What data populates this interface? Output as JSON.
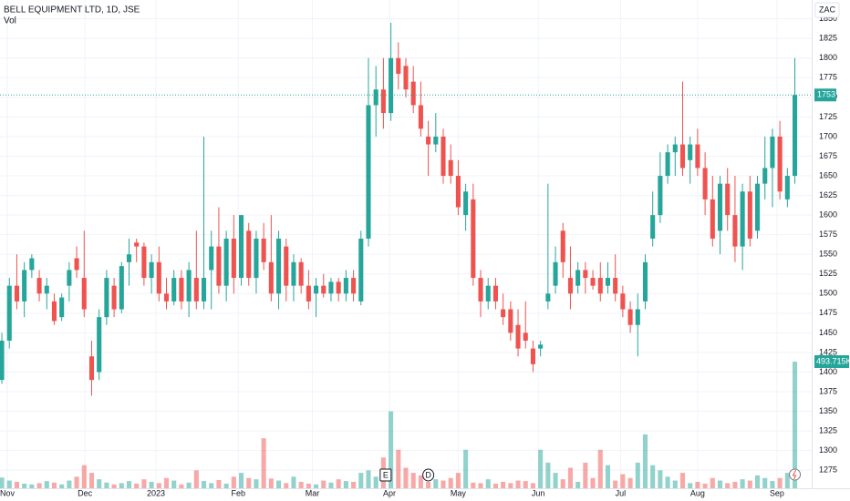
{
  "chart_data": {
    "type": "candlestick",
    "title": "BELL EQUIPMENT LTD, 1D, JSE",
    "volume_title": "Vol",
    "currency": "ZAC",
    "up_color": "#26a69a",
    "down_color": "#ef5350",
    "grid": true,
    "ylim": [
      1252,
      1874
    ],
    "yticks": [
      1275,
      1300,
      1325,
      1350,
      1375,
      1400,
      1425,
      1450,
      1475,
      1500,
      1525,
      1550,
      1575,
      1600,
      1625,
      1650,
      1675,
      1700,
      1725,
      1750,
      1775,
      1800,
      1825,
      1850
    ],
    "y2lim": [
      0,
      1903800
    ],
    "xlim": [
      -0.25,
      108.25
    ],
    "xticks": [
      {
        "value": 0.73,
        "label": "Nov"
      },
      {
        "value": 11.1,
        "label": "Dec"
      },
      {
        "value": 20.6,
        "label": "2023"
      },
      {
        "value": 31.6,
        "label": "Feb"
      },
      {
        "value": 41.5,
        "label": "Mar"
      },
      {
        "value": 51.8,
        "label": "Apr"
      },
      {
        "value": 61,
        "label": "May"
      },
      {
        "value": 71.7,
        "label": "Jun"
      },
      {
        "value": 82.7,
        "label": "Jul"
      },
      {
        "value": 93,
        "label": "Aug"
      },
      {
        "value": 103.6,
        "label": "Sep"
      }
    ],
    "ohlc": [
      [
        1390,
        1450,
        1385,
        1440
      ],
      [
        1440,
        1520,
        1430,
        1510
      ],
      [
        1510,
        1550,
        1480,
        1490
      ],
      [
        1490,
        1540,
        1470,
        1530
      ],
      [
        1530,
        1550,
        1520,
        1545
      ],
      [
        1520,
        1530,
        1490,
        1500
      ],
      [
        1500,
        1520,
        1480,
        1510
      ],
      [
        1490,
        1500,
        1460,
        1465
      ],
      [
        1470,
        1500,
        1465,
        1495
      ],
      [
        1510,
        1540,
        1490,
        1530
      ],
      [
        1545,
        1560,
        1520,
        1530
      ],
      [
        1520,
        1580,
        1470,
        1480
      ],
      [
        1420,
        1440,
        1370,
        1390
      ],
      [
        1400,
        1480,
        1390,
        1470
      ],
      [
        1470,
        1530,
        1460,
        1520
      ],
      [
        1510,
        1520,
        1470,
        1480
      ],
      [
        1480,
        1540,
        1475,
        1535
      ],
      [
        1540,
        1570,
        1510,
        1550
      ],
      [
        1565,
        1570,
        1540,
        1560
      ],
      [
        1560,
        1565,
        1510,
        1520
      ],
      [
        1520,
        1550,
        1500,
        1540
      ],
      [
        1540,
        1560,
        1490,
        1500
      ],
      [
        1500,
        1520,
        1480,
        1490
      ],
      [
        1490,
        1530,
        1485,
        1520
      ],
      [
        1520,
        1530,
        1480,
        1490
      ],
      [
        1490,
        1540,
        1470,
        1530
      ],
      [
        1520,
        1580,
        1480,
        1490
      ],
      [
        1490,
        1700,
        1480,
        1520
      ],
      [
        1530,
        1580,
        1480,
        1560
      ],
      [
        1560,
        1610,
        1500,
        1510
      ],
      [
        1510,
        1580,
        1490,
        1570
      ],
      [
        1570,
        1600,
        1500,
        1520
      ],
      [
        1520,
        1600,
        1510,
        1600
      ],
      [
        1580,
        1590,
        1510,
        1520
      ],
      [
        1520,
        1580,
        1500,
        1570
      ],
      [
        1570,
        1590,
        1530,
        1540
      ],
      [
        1540,
        1600,
        1490,
        1500
      ],
      [
        1500,
        1580,
        1480,
        1570
      ],
      [
        1560,
        1570,
        1490,
        1510
      ],
      [
        1510,
        1550,
        1490,
        1540
      ],
      [
        1540,
        1545,
        1500,
        1510
      ],
      [
        1510,
        1530,
        1480,
        1490
      ],
      [
        1500,
        1520,
        1470,
        1510
      ],
      [
        1510,
        1525,
        1495,
        1500
      ],
      [
        1500,
        1520,
        1490,
        1515
      ],
      [
        1515,
        1520,
        1490,
        1500
      ],
      [
        1500,
        1530,
        1490,
        1520
      ],
      [
        1520,
        1530,
        1490,
        1500
      ],
      [
        1490,
        1580,
        1485,
        1570
      ],
      [
        1570,
        1800,
        1560,
        1740
      ],
      [
        1740,
        1790,
        1700,
        1760
      ],
      [
        1760,
        1800,
        1710,
        1730
      ],
      [
        1730,
        1845,
        1720,
        1800
      ],
      [
        1800,
        1820,
        1760,
        1780
      ],
      [
        1790,
        1800,
        1750,
        1760
      ],
      [
        1770,
        1790,
        1730,
        1740
      ],
      [
        1740,
        1770,
        1700,
        1710
      ],
      [
        1700,
        1720,
        1650,
        1690
      ],
      [
        1690,
        1730,
        1680,
        1700
      ],
      [
        1700,
        1710,
        1640,
        1650
      ],
      [
        1670,
        1690,
        1640,
        1650
      ],
      [
        1650,
        1670,
        1600,
        1610
      ],
      [
        1600,
        1640,
        1580,
        1630
      ],
      [
        1620,
        1640,
        1510,
        1520
      ],
      [
        1520,
        1530,
        1470,
        1490
      ],
      [
        1490,
        1520,
        1480,
        1510
      ],
      [
        1510,
        1520,
        1480,
        1490
      ],
      [
        1480,
        1500,
        1460,
        1470
      ],
      [
        1480,
        1490,
        1440,
        1450
      ],
      [
        1460,
        1480,
        1420,
        1430
      ],
      [
        1450,
        1490,
        1430,
        1440
      ],
      [
        1430,
        1440,
        1400,
        1410
      ],
      [
        1430,
        1440,
        1420,
        1435
      ],
      [
        1490,
        1640,
        1480,
        1500
      ],
      [
        1510,
        1560,
        1500,
        1540
      ],
      [
        1580,
        1590,
        1520,
        1540
      ],
      [
        1520,
        1560,
        1480,
        1500
      ],
      [
        1510,
        1540,
        1500,
        1530
      ],
      [
        1530,
        1540,
        1500,
        1520
      ],
      [
        1520,
        1530,
        1505,
        1510
      ],
      [
        1520,
        1540,
        1490,
        1500
      ],
      [
        1510,
        1540,
        1500,
        1520
      ],
      [
        1520,
        1550,
        1490,
        1500
      ],
      [
        1500,
        1510,
        1470,
        1480
      ],
      [
        1480,
        1490,
        1450,
        1460
      ],
      [
        1460,
        1500,
        1420,
        1480
      ],
      [
        1490,
        1550,
        1480,
        1540
      ],
      [
        1570,
        1630,
        1560,
        1600
      ],
      [
        1600,
        1680,
        1590,
        1650
      ],
      [
        1650,
        1690,
        1640,
        1680
      ],
      [
        1680,
        1700,
        1650,
        1690
      ],
      [
        1690,
        1770,
        1650,
        1660
      ],
      [
        1670,
        1700,
        1640,
        1690
      ],
      [
        1690,
        1710,
        1650,
        1660
      ],
      [
        1660,
        1680,
        1600,
        1620
      ],
      [
        1620,
        1650,
        1560,
        1570
      ],
      [
        1580,
        1650,
        1550,
        1640
      ],
      [
        1640,
        1660,
        1580,
        1600
      ],
      [
        1600,
        1650,
        1540,
        1560
      ],
      [
        1560,
        1640,
        1530,
        1630
      ],
      [
        1630,
        1650,
        1560,
        1570
      ],
      [
        1580,
        1650,
        1570,
        1640
      ],
      [
        1640,
        1700,
        1620,
        1660
      ],
      [
        1660,
        1710,
        1610,
        1700
      ],
      [
        1700,
        1720,
        1620,
        1630
      ],
      [
        1620,
        1660,
        1610,
        1650
      ],
      [
        1650,
        1800,
        1640,
        1753
      ]
    ],
    "volume": [
      42000,
      30000,
      25000,
      18000,
      15000,
      20000,
      28000,
      22000,
      15000,
      30000,
      45000,
      90000,
      60000,
      35000,
      22000,
      15000,
      20000,
      28000,
      18000,
      35000,
      25000,
      20000,
      40000,
      30000,
      15000,
      22000,
      70000,
      28000,
      20000,
      32000,
      18000,
      45000,
      60000,
      40000,
      35000,
      195000,
      38000,
      30000,
      20000,
      45000,
      25000,
      18000,
      15000,
      30000,
      22000,
      35000,
      28000,
      25000,
      60000,
      70000,
      45000,
      120000,
      300000,
      150000,
      80000,
      60000,
      50000,
      25000,
      35000,
      30000,
      40000,
      60000,
      150000,
      22000,
      20000,
      35000,
      18000,
      25000,
      20000,
      30000,
      28000,
      20000,
      150000,
      100000,
      60000,
      35000,
      80000,
      25000,
      100000,
      40000,
      150000,
      90000,
      30000,
      55000,
      40000,
      100000,
      210000,
      90000,
      70000,
      45000,
      30000,
      60000,
      20000,
      25000,
      18000,
      40000,
      30000,
      20000,
      25000,
      35000,
      30000,
      50000,
      40000,
      28000,
      40000,
      60000,
      493715
    ],
    "volume_last_label": "493.715K",
    "events": [
      {
        "label": "E",
        "x": 51.3
      },
      {
        "label": "D",
        "x": 57
      }
    ]
  }
}
